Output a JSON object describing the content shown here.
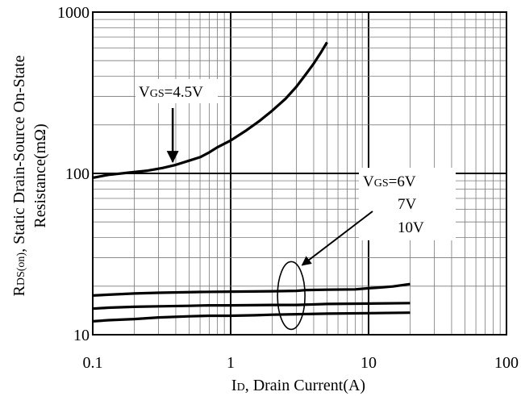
{
  "chart_data": {
    "type": "line",
    "x_scale": "log",
    "y_scale": "log",
    "xlim": [
      0.1,
      100
    ],
    "ylim": [
      10,
      1000
    ],
    "grid": true,
    "x_ticks": [
      "0.1",
      "1",
      "10",
      "100"
    ],
    "y_ticks": [
      "10",
      "100",
      "1000"
    ],
    "xlabel": {
      "main": "I",
      "sub": "D",
      "rest": ", Drain Current(A)"
    },
    "ylabel": {
      "line1_main": "R",
      "line1_sub": "DS(on)",
      "line1_rest": ", Static Drain-Source On-State",
      "line2": "Resistance(mΩ)"
    },
    "series": [
      {
        "name": "VGS=4.5V",
        "x": [
          0.1,
          0.13,
          0.18,
          0.25,
          0.32,
          0.4,
          0.5,
          0.6,
          0.7,
          0.8,
          1.0,
          1.3,
          1.6,
          2.0,
          2.5,
          3.0,
          3.5,
          4.0,
          4.5,
          5.0
        ],
        "y": [
          94,
          98,
          101,
          104,
          108,
          113,
          120,
          126,
          135,
          145,
          160,
          185,
          210,
          245,
          290,
          345,
          410,
          480,
          560,
          650
        ]
      },
      {
        "name": "VGS=6V",
        "x": [
          0.1,
          0.13,
          0.2,
          0.3,
          0.6,
          1.0,
          2.0,
          3.0,
          3.5,
          5.0,
          8.0,
          10.0,
          12.0,
          15.0,
          20.0
        ],
        "y": [
          17.5,
          17.7,
          18.0,
          18.2,
          18.4,
          18.5,
          18.6,
          18.7,
          18.9,
          19.0,
          19.1,
          19.4,
          19.6,
          19.9,
          20.6
        ]
      },
      {
        "name": "7V",
        "x": [
          0.1,
          0.13,
          0.2,
          0.3,
          0.5,
          0.7,
          1.0,
          2.0,
          3.0,
          5.0,
          10.0,
          20.0
        ],
        "y": [
          14.5,
          14.7,
          14.9,
          15.0,
          15.1,
          15.2,
          15.2,
          15.3,
          15.3,
          15.5,
          15.6,
          15.7
        ]
      },
      {
        "name": "10V",
        "x": [
          0.1,
          0.13,
          0.2,
          0.3,
          0.5,
          0.7,
          1.0,
          1.5,
          2.0,
          3.0,
          5.0,
          10.0,
          20.0
        ],
        "y": [
          12.1,
          12.3,
          12.5,
          12.8,
          13.0,
          13.1,
          13.1,
          13.2,
          13.3,
          13.4,
          13.5,
          13.6,
          13.7
        ]
      }
    ],
    "annotations": {
      "vgs45": {
        "main": "V",
        "sub": "GS",
        "rest": "=4.5V"
      },
      "vgs6": {
        "main": "V",
        "sub": "GS",
        "rest": "=6V"
      },
      "v7": "7V",
      "v10": "10V",
      "arrow_45_tip": [
        0.38,
        118
      ],
      "arrow_6_tip": [
        3.3,
        27
      ],
      "ellipse_center": [
        2.75,
        17.5
      ]
    }
  }
}
